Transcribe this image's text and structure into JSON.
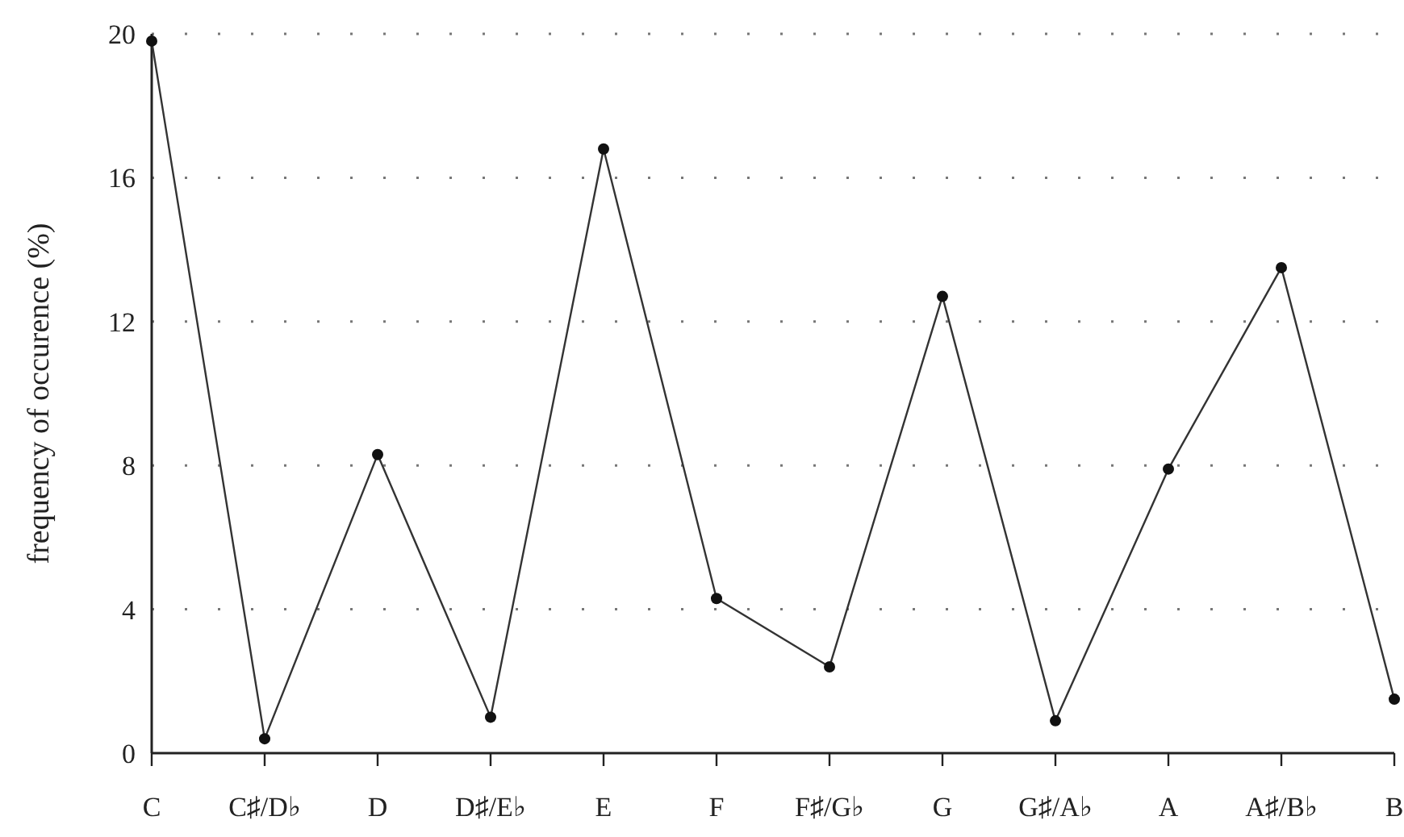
{
  "chart_data": {
    "type": "line",
    "ylabel": "frequency of occurence (%)",
    "categories": [
      "C",
      "C♯/D♭",
      "D",
      "D♯/E♭",
      "E",
      "F",
      "F♯/G♭",
      "G",
      "G♯/A♭",
      "A",
      "A♯/B♭",
      "B"
    ],
    "series": [
      {
        "color": "#333333",
        "values": [
          19.8,
          0.4,
          8.3,
          1.0,
          16.8,
          4.3,
          2.4,
          12.7,
          0.9,
          7.9,
          13.5,
          1.5
        ]
      }
    ],
    "ylim": [
      0,
      20
    ],
    "yticks": [
      0,
      4,
      8,
      12,
      16,
      20
    ],
    "grid": "y",
    "marker": "circle",
    "line_style": "solid"
  }
}
